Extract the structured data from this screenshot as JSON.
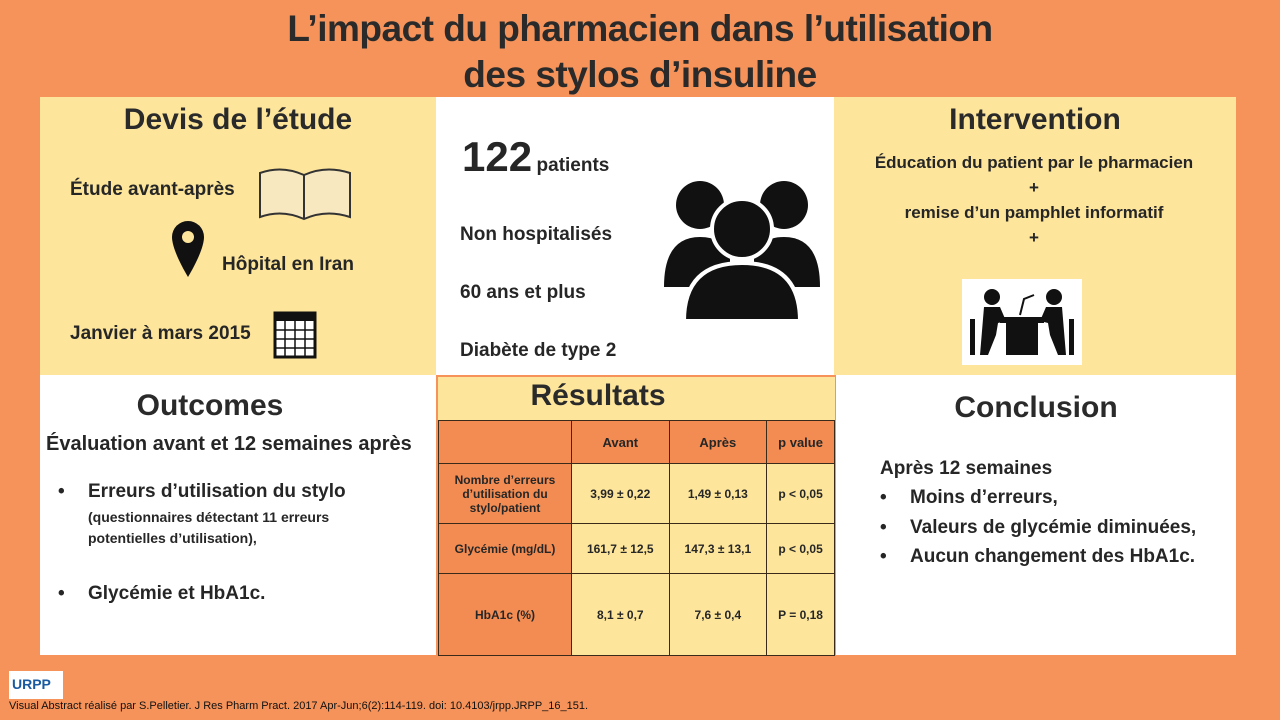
{
  "title": {
    "line1": "L’impact du pharmacien dans l’utilisation",
    "line2": "des stylos d’insuline"
  },
  "design": {
    "heading": "Devis de l’étude",
    "type": "Étude avant-après",
    "location": "Hôpital en Iran",
    "period": "Janvier à mars 2015"
  },
  "population": {
    "count": "122",
    "count_label": "patients",
    "items": [
      "Non hospitalisés",
      "60 ans et plus",
      "Diabète de type 2"
    ]
  },
  "intervention": {
    "heading": "Intervention",
    "line1": "Éducation du patient par le pharmacien",
    "plus1": "+",
    "line2": "remise d’un pamphlet informatif",
    "plus2": "+"
  },
  "outcomes": {
    "heading": "Outcomes",
    "subtitle": "Évaluation avant et  12 semaines après",
    "item1": "Erreurs d’utilisation du stylo",
    "item1_note": "(questionnaires détectant 11 erreurs potentielles d’utilisation),",
    "item2": "Glycémie et HbA1c.",
    "bullet": "•"
  },
  "results": {
    "heading": "Résultats",
    "columns": [
      "",
      "Avant",
      "Après",
      "p value"
    ],
    "rows": [
      [
        "Nombre d’erreurs d’utilisation du stylo/patient",
        "3,99 ±  0,22",
        "1,49 ± 0,13",
        "p < 0,05"
      ],
      [
        "Glycémie  (mg/dL)",
        "161,7 ± 12,5",
        "147,3 ± 13,1",
        "p < 0,05"
      ],
      [
        "HbA1c (%)",
        "8,1 ± 0,7",
        "7,6 ± 0,4",
        "P = 0,18"
      ]
    ]
  },
  "conclusion": {
    "heading": "Conclusion",
    "intro": "Après 12 semaines",
    "items": [
      "Moins d’erreurs,",
      "Valeurs de glycémie diminuées,",
      "Aucun changement des HbA1c."
    ],
    "bullet": "•"
  },
  "footer": {
    "logo": "URPP",
    "citation": "Visual Abstract réalisé par S.Pelletier. J Res Pharm Pract. 2017 Apr-Jun;6(2):114-119. doi: 10.4103/jrpp.JRPP_16_151."
  },
  "colors": {
    "background": "#f5935a",
    "panel": "#fde59b",
    "table_header": "#f28c52"
  }
}
